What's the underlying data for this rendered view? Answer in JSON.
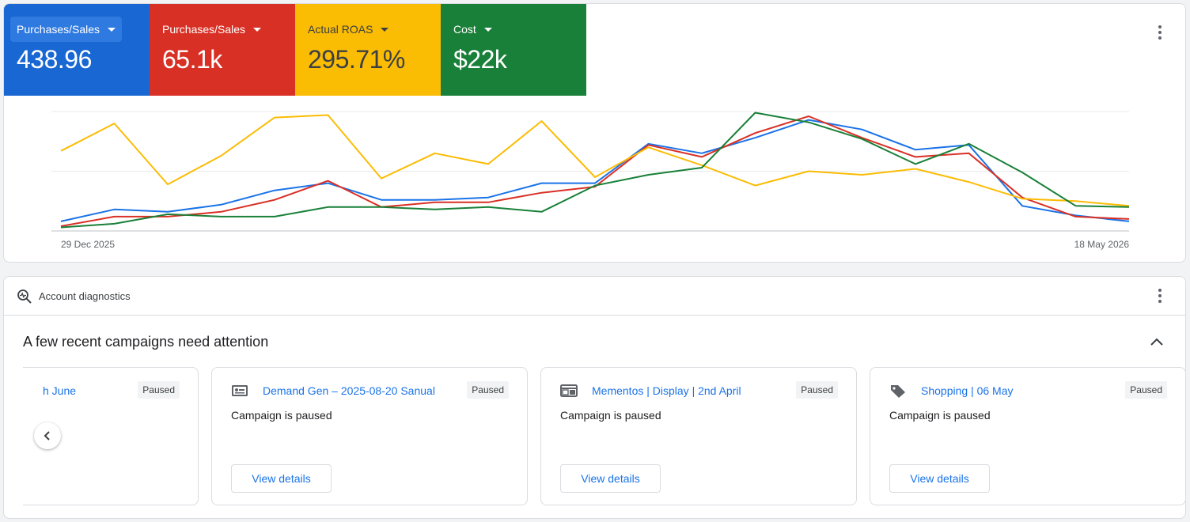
{
  "metrics": [
    {
      "label": "Purchases/Sales",
      "value": "438.96",
      "color": "#1967d2"
    },
    {
      "label": "Purchases/Sales",
      "value": "65.1k",
      "color": "#d93025"
    },
    {
      "label": "Actual ROAS",
      "value": "295.71%",
      "color": "#fbbc04"
    },
    {
      "label": "Cost",
      "value": "$22k",
      "color": "#188038"
    }
  ],
  "chart_data": {
    "type": "line",
    "x_start_label": "29 Dec 2025",
    "x_end_label": "18 May 2026",
    "gridlines": 3,
    "ylim": [
      0,
      100
    ],
    "series": [
      {
        "color": "#1a73e8",
        "values": [
          8,
          18,
          16,
          22,
          34,
          40,
          26,
          26,
          28,
          40,
          40,
          73,
          65,
          78,
          93,
          85,
          68,
          72,
          21,
          13,
          8
        ]
      },
      {
        "color": "#d93025",
        "values": [
          4,
          12,
          12,
          16,
          26,
          42,
          20,
          24,
          24,
          32,
          37,
          72,
          62,
          82,
          96,
          78,
          62,
          65,
          28,
          12,
          10
        ]
      },
      {
        "color": "#fbbc04",
        "values": [
          67,
          90,
          39,
          63,
          95,
          97,
          44,
          65,
          56,
          92,
          45,
          70,
          55,
          38,
          50,
          47,
          52,
          41,
          27,
          25,
          21
        ]
      },
      {
        "color": "#188038",
        "values": [
          3,
          6,
          14,
          12,
          12,
          20,
          20,
          18,
          20,
          16,
          38,
          47,
          53,
          99,
          91,
          77,
          56,
          73,
          49,
          21,
          20
        ]
      }
    ]
  },
  "diagnostics": {
    "title": "Account diagnostics",
    "heading": "A few recent campaigns need attention",
    "campaigns": [
      {
        "name": "h June",
        "status": "Paused",
        "message": "",
        "button": ""
      },
      {
        "name": "Demand Gen – 2025-08-20 Sanual",
        "status": "Paused",
        "message": "Campaign is paused",
        "button": "View details",
        "icon": "demand-gen-icon"
      },
      {
        "name": "Mementos | Display | 2nd April",
        "status": "Paused",
        "message": "Campaign is paused",
        "button": "View details",
        "icon": "display-icon"
      },
      {
        "name": "Shopping | 06 May",
        "status": "Paused",
        "message": "Campaign is paused",
        "button": "View details",
        "icon": "shopping-tag-icon"
      }
    ]
  }
}
